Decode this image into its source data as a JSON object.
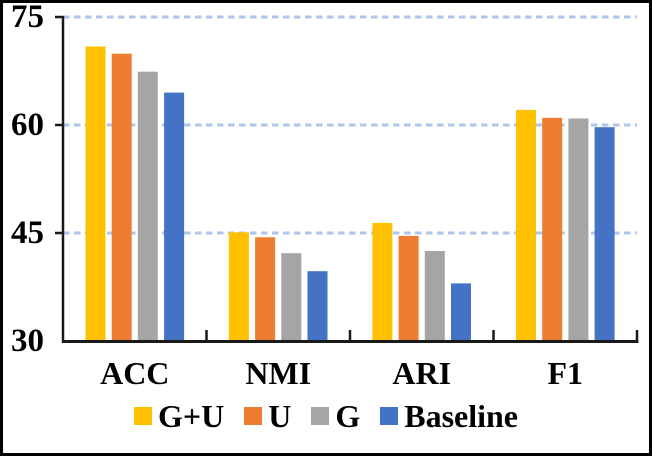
{
  "chart_data": {
    "type": "bar",
    "title": "",
    "xlabel": "",
    "ylabel": "",
    "categories": [
      "ACC",
      "NMI",
      "ARI",
      "F1"
    ],
    "series": [
      {
        "name": "G+U",
        "color": "#FFC000",
        "values": [
          70.9,
          45.1,
          46.4,
          62.1
        ]
      },
      {
        "name": "U",
        "color": "#ED7D31",
        "values": [
          69.9,
          44.4,
          44.6,
          61.0
        ]
      },
      {
        "name": "G",
        "color": "#A5A5A5",
        "values": [
          67.4,
          42.2,
          42.5,
          60.9
        ]
      },
      {
        "name": "Baseline",
        "color": "#4472C4",
        "values": [
          64.5,
          39.7,
          38.0,
          59.7
        ]
      }
    ],
    "ylim": [
      30,
      75
    ],
    "yticks": [
      75,
      60,
      45,
      30
    ],
    "grid": "horizontal dashed lines at 45, 60, 75",
    "gridline_color": "#AEC6E9",
    "axis_color": "#1a1a1a",
    "frame_color": "#000000",
    "legend_position": "bottom"
  }
}
